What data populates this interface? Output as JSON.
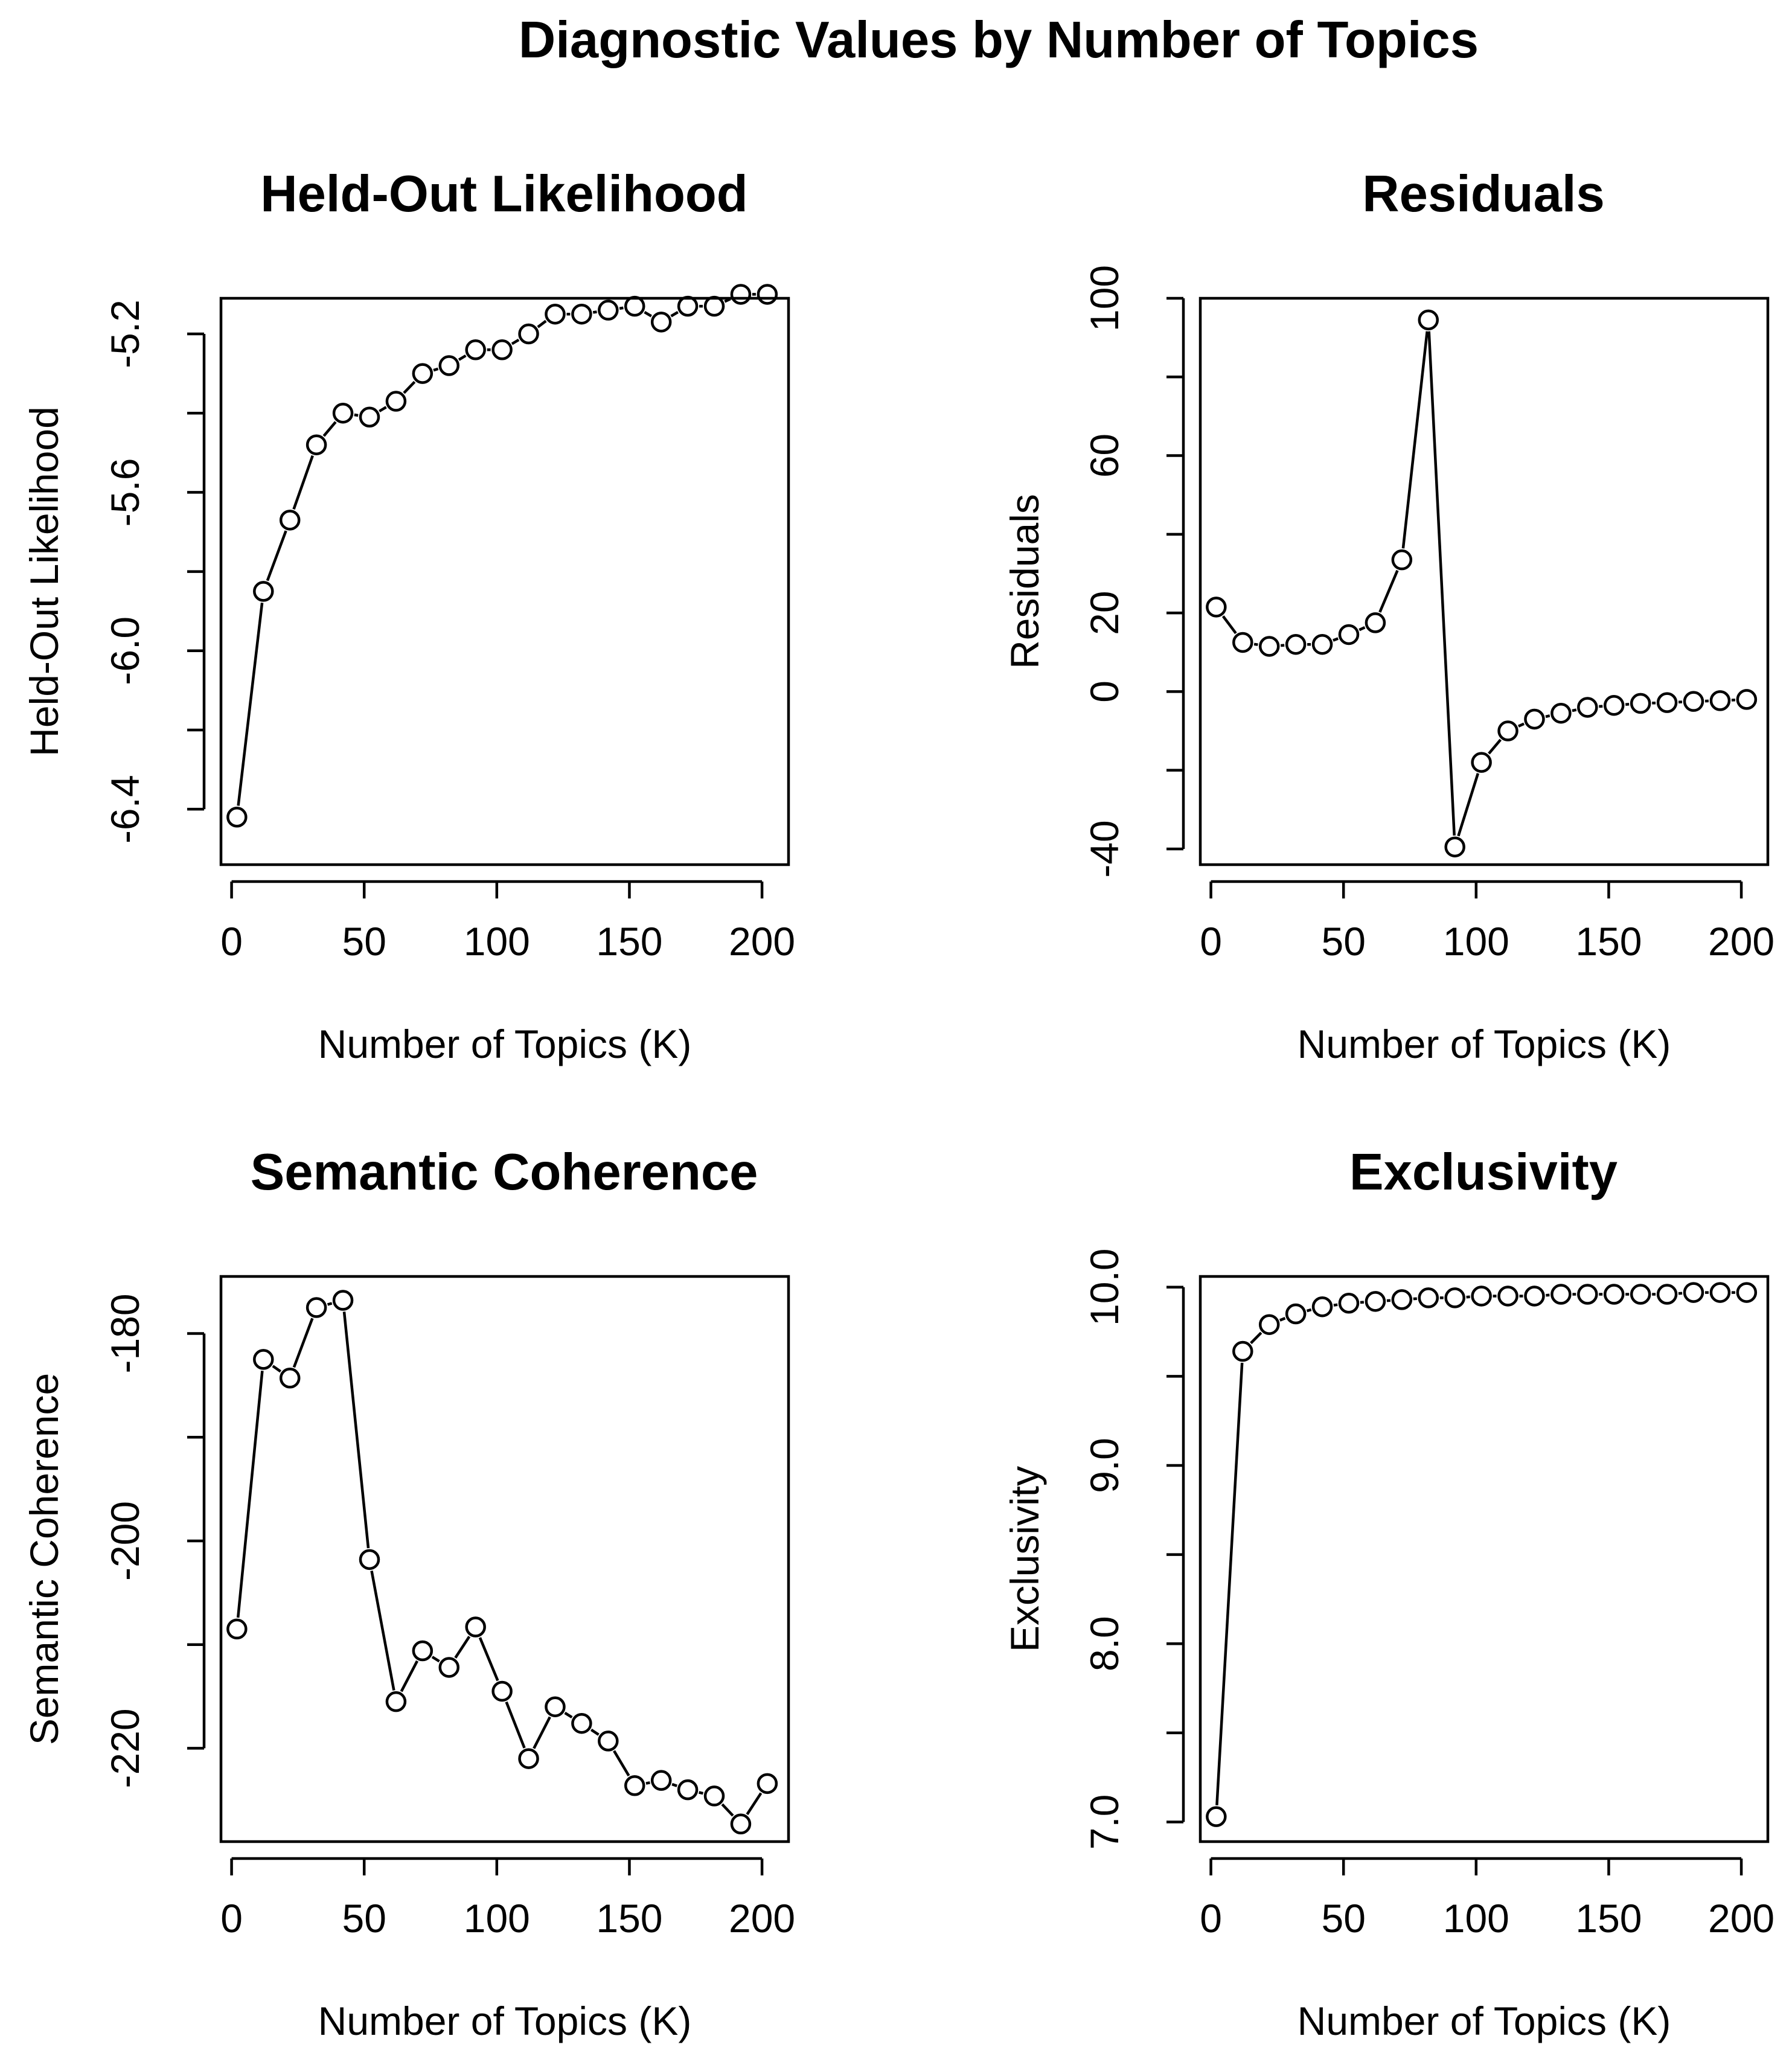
{
  "figure": {
    "title": "Diagnostic Values by Number of Topics",
    "colors": {
      "line": "#000000",
      "background": "#ffffff"
    }
  },
  "chart_data": [
    {
      "id": "heldout",
      "type": "line",
      "marker": "open-circle",
      "title": "Held-Out Likelihood",
      "xlabel": "Number of Topics (K)",
      "ylabel": "Held-Out Likelihood",
      "xlim": [
        -4,
        210
      ],
      "ylim": [
        -6.54,
        -5.11
      ],
      "xticks": [
        0,
        50,
        100,
        150,
        200
      ],
      "xtick_labels": [
        "0",
        "50",
        "100",
        "150",
        "200"
      ],
      "yticks": [
        -6.4,
        -6.2,
        -6.0,
        -5.8,
        -5.6,
        -5.4,
        -5.2
      ],
      "ytick_labels": [
        "-6.4",
        "",
        "-6.0",
        "",
        "-5.6",
        "",
        "-5.2"
      ],
      "x": [
        2,
        12,
        22,
        32,
        42,
        52,
        62,
        72,
        82,
        92,
        102,
        112,
        122,
        132,
        142,
        152,
        162,
        172,
        182,
        192,
        202
      ],
      "values": [
        -6.42,
        -5.85,
        -5.67,
        -5.48,
        -5.4,
        -5.41,
        -5.37,
        -5.3,
        -5.28,
        -5.24,
        -5.24,
        -5.2,
        -5.15,
        -5.15,
        -5.14,
        -5.13,
        -5.17,
        -5.13,
        -5.13,
        -5.1,
        -5.1
      ]
    },
    {
      "id": "residuals",
      "type": "line",
      "marker": "open-circle",
      "title": "Residuals",
      "xlabel": "Number of Topics (K)",
      "ylabel": "Residuals",
      "xlim": [
        -4,
        210
      ],
      "ylim": [
        -44,
        100
      ],
      "xticks": [
        0,
        50,
        100,
        150,
        200
      ],
      "xtick_labels": [
        "0",
        "50",
        "100",
        "150",
        "200"
      ],
      "yticks": [
        -40,
        -20,
        0,
        20,
        40,
        60,
        80,
        100
      ],
      "ytick_labels": [
        "-40",
        "",
        "0",
        "20",
        "",
        "60",
        "",
        "100"
      ],
      "x": [
        2,
        12,
        22,
        32,
        42,
        52,
        62,
        72,
        82,
        92,
        102,
        112,
        122,
        132,
        142,
        152,
        162,
        172,
        182,
        192,
        202
      ],
      "values": [
        21.5,
        12.5,
        11.5,
        12,
        12,
        14.5,
        17.5,
        33.5,
        94.5,
        -39.5,
        -18,
        -10,
        -7,
        -5.5,
        -4,
        -3.5,
        -3,
        -2.8,
        -2.5,
        -2.3,
        -2
      ]
    },
    {
      "id": "coherence",
      "type": "line",
      "marker": "open-circle",
      "title": "Semantic Coherence",
      "xlabel": "Number of Topics (K)",
      "ylabel": "Semantic Coherence",
      "xlim": [
        -4,
        210
      ],
      "ylim": [
        -229,
        -174.5
      ],
      "xticks": [
        0,
        50,
        100,
        150,
        200
      ],
      "xtick_labels": [
        "0",
        "50",
        "100",
        "150",
        "200"
      ],
      "yticks": [
        -220,
        -210,
        -200,
        -190,
        -180
      ],
      "ytick_labels": [
        "-220",
        "",
        "-200",
        "",
        "-180"
      ],
      "x": [
        2,
        12,
        22,
        32,
        42,
        52,
        62,
        72,
        82,
        92,
        102,
        112,
        122,
        132,
        142,
        152,
        162,
        172,
        182,
        192,
        202
      ],
      "values": [
        -208.5,
        -182.5,
        -184.3,
        -177.5,
        -176.8,
        -201.8,
        -215.5,
        -210.6,
        -212.2,
        -208.3,
        -214.5,
        -221,
        -216,
        -217.6,
        -219.3,
        -223.6,
        -223.1,
        -224,
        -224.6,
        -227.3,
        -223.4
      ]
    },
    {
      "id": "exclusivity",
      "type": "line",
      "marker": "open-circle",
      "title": "Exclusivity",
      "xlabel": "Number of Topics (K)",
      "ylabel": "Exclusivity",
      "xlim": [
        -4,
        210
      ],
      "ylim": [
        6.89,
        10.06
      ],
      "xticks": [
        0,
        50,
        100,
        150,
        200
      ],
      "xtick_labels": [
        "0",
        "50",
        "100",
        "150",
        "200"
      ],
      "yticks": [
        7.0,
        7.5,
        8.0,
        8.5,
        9.0,
        9.5,
        10.0
      ],
      "ytick_labels": [
        "7.0",
        "",
        "8.0",
        "",
        "9.0",
        "",
        "10.0"
      ],
      "x": [
        2,
        12,
        22,
        32,
        42,
        52,
        62,
        72,
        82,
        92,
        102,
        112,
        122,
        132,
        142,
        152,
        162,
        172,
        182,
        192,
        202
      ],
      "values": [
        7.03,
        9.64,
        9.79,
        9.85,
        9.89,
        9.91,
        9.92,
        9.93,
        9.94,
        9.94,
        9.95,
        9.95,
        9.95,
        9.96,
        9.96,
        9.96,
        9.96,
        9.96,
        9.97,
        9.97,
        9.97
      ]
    }
  ]
}
